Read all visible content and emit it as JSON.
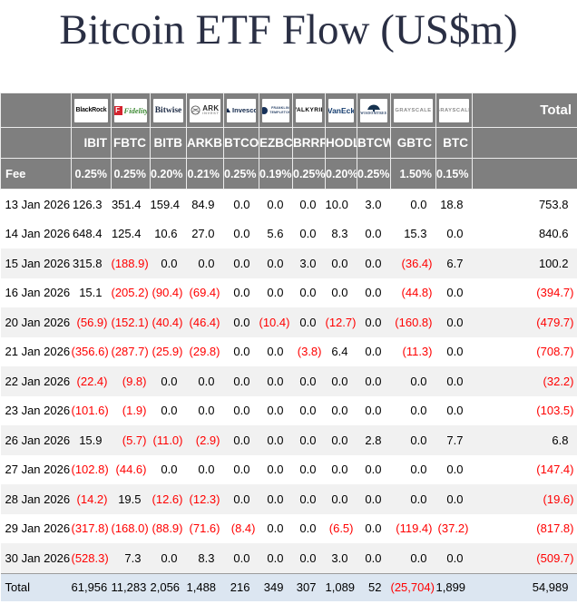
{
  "title": "Bitcoin ETF Flow (US$m)",
  "header": {
    "total_label": "Total",
    "fee_label": "Fee",
    "providers": [
      {
        "id": "blackrock",
        "name": "BlackRock",
        "ticker": "IBIT",
        "fee": "0.25%"
      },
      {
        "id": "fidelity",
        "name": "Fidelity",
        "mark": "F",
        "ticker": "FBTC",
        "fee": "0.25%"
      },
      {
        "id": "bitwise",
        "name": "Bitwise",
        "ticker": "BITB",
        "fee": "0.20%"
      },
      {
        "id": "ark",
        "name": "ARK",
        "sub": "INVEST",
        "ticker": "ARKB",
        "fee": "0.21%"
      },
      {
        "id": "invesco",
        "name": "Invesco",
        "ticker": "BTCO",
        "fee": "0.25%"
      },
      {
        "id": "franklin",
        "name": "FRANKLIN",
        "sub": "TEMPLETON",
        "ticker": "EZBC",
        "fee": "0.19%"
      },
      {
        "id": "valkyrie",
        "name": "VALKYRIE",
        "ticker": "BRRR",
        "fee": "0.25%"
      },
      {
        "id": "vaneck",
        "name": "VanEck",
        "ticker": "HODL",
        "fee": "0.20%"
      },
      {
        "id": "wisdomtree",
        "name": "WISDOMTREE",
        "ticker": "BTCW",
        "fee": "0.25%"
      },
      {
        "id": "grayscale",
        "name": "GRAYSCALE",
        "ticker": "GBTC",
        "fee": "1.50%"
      },
      {
        "id": "grayscale2",
        "name": "GRAYSCALE",
        "ticker": "BTC",
        "fee": "0.15%"
      }
    ]
  },
  "colors": {
    "header_bg": "#7f7f7f",
    "negative": "#ff0000",
    "stripe": "#f1f1f1",
    "total_row_bg": "#dce6f1",
    "title_color": "#2a2f44"
  },
  "chart_data": {
    "type": "table",
    "title": "Bitcoin ETF Flow (US$m)",
    "columns": [
      "IBIT",
      "FBTC",
      "BITB",
      "ARKB",
      "BTCO",
      "EZBC",
      "BRRR",
      "HODL",
      "BTCW",
      "GBTC",
      "BTC",
      "Total"
    ],
    "fees": [
      "0.25%",
      "0.25%",
      "0.20%",
      "0.21%",
      "0.25%",
      "0.19%",
      "0.25%",
      "0.20%",
      "0.25%",
      "1.50%",
      "0.15%"
    ],
    "rows": [
      {
        "date": "13 Jan 2026",
        "values": [
          126.3,
          351.4,
          159.4,
          84.9,
          0,
          0,
          0,
          10.0,
          3.0,
          0,
          18.8
        ],
        "total": 753.8
      },
      {
        "date": "14 Jan 2026",
        "values": [
          648.4,
          125.4,
          10.6,
          27.0,
          0,
          5.6,
          0,
          8.3,
          0,
          15.3,
          0
        ],
        "total": 840.6
      },
      {
        "date": "15 Jan 2026",
        "values": [
          315.8,
          -188.9,
          0,
          0,
          0,
          0,
          3.0,
          0,
          0,
          -36.4,
          6.7
        ],
        "total": 100.2
      },
      {
        "date": "16 Jan 2026",
        "values": [
          15.1,
          -205.2,
          -90.4,
          -69.4,
          0,
          0,
          0,
          0,
          0,
          -44.8,
          0
        ],
        "total": -394.7
      },
      {
        "date": "20 Jan 2026",
        "values": [
          -56.9,
          -152.1,
          -40.4,
          -46.4,
          0,
          -10.4,
          0,
          -12.7,
          0,
          -160.8,
          0
        ],
        "total": -479.7
      },
      {
        "date": "21 Jan 2026",
        "values": [
          -356.6,
          -287.7,
          -25.9,
          -29.8,
          0,
          0,
          -3.8,
          6.4,
          0,
          -11.3,
          0
        ],
        "total": -708.7
      },
      {
        "date": "22 Jan 2026",
        "values": [
          -22.4,
          -9.8,
          0,
          0,
          0,
          0,
          0,
          0,
          0,
          0,
          0
        ],
        "total": -32.2
      },
      {
        "date": "23 Jan 2026",
        "values": [
          -101.6,
          -1.9,
          0,
          0,
          0,
          0,
          0,
          0,
          0,
          0,
          0
        ],
        "total": -103.5
      },
      {
        "date": "26 Jan 2026",
        "values": [
          15.9,
          -5.7,
          -11.0,
          -2.9,
          0,
          0,
          0,
          0,
          2.8,
          0,
          7.7
        ],
        "total": 6.8
      },
      {
        "date": "27 Jan 2026",
        "values": [
          -102.8,
          -44.6,
          0,
          0,
          0,
          0,
          0,
          0,
          0,
          0,
          0
        ],
        "total": -147.4
      },
      {
        "date": "28 Jan 2026",
        "values": [
          -14.2,
          19.5,
          -12.6,
          -12.3,
          0,
          0,
          0,
          0,
          0,
          0,
          0
        ],
        "total": -19.6
      },
      {
        "date": "29 Jan 2026",
        "values": [
          -317.8,
          -168.0,
          -88.9,
          -71.6,
          -8.4,
          0,
          0,
          -6.5,
          0,
          -119.4,
          -37.2
        ],
        "total": -817.8
      },
      {
        "date": "30 Jan 2026",
        "values": [
          -528.3,
          7.3,
          0,
          8.3,
          0,
          0,
          0,
          3.0,
          0,
          0,
          0
        ],
        "total": -509.7
      }
    ],
    "totals": {
      "label": "Total",
      "values": [
        61956,
        11283,
        2056,
        1488,
        216,
        349,
        307,
        1089,
        52,
        -25704,
        1899
      ],
      "total": 54989
    }
  }
}
